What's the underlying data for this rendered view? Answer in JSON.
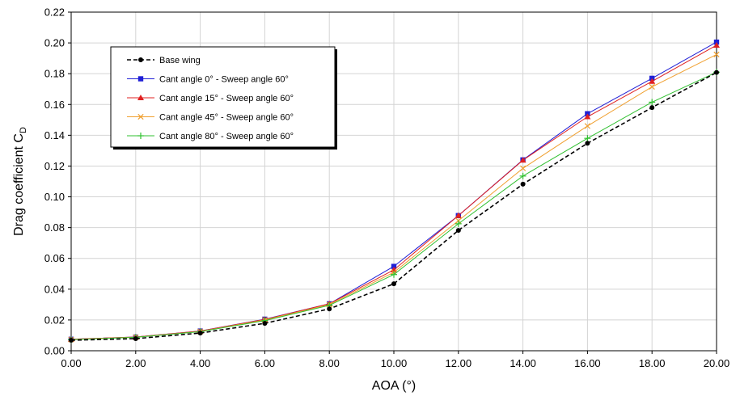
{
  "chart_data": {
    "type": "line",
    "title": "",
    "xlabel": "AOA (°)",
    "ylabel": "Drag coefficient C",
    "ylabel_subscript": "D",
    "xlim": [
      0,
      20
    ],
    "ylim": [
      0,
      0.22
    ],
    "x_ticks": [
      "0.00",
      "2.00",
      "4.00",
      "6.00",
      "8.00",
      "10.00",
      "12.00",
      "14.00",
      "16.00",
      "18.00",
      "20.00"
    ],
    "y_ticks": [
      "0.00",
      "0.02",
      "0.04",
      "0.06",
      "0.08",
      "0.10",
      "0.12",
      "0.14",
      "0.16",
      "0.18",
      "0.20",
      "0.22"
    ],
    "grid": true,
    "legend_position": "top-left",
    "x": [
      0,
      2,
      4,
      6,
      8,
      10,
      12,
      14,
      16,
      18,
      20
    ],
    "series": [
      {
        "name": "Base wing",
        "color": "#000000",
        "marker": "circle",
        "dashed": true,
        "values": [
          0.0068,
          0.0079,
          0.0115,
          0.0178,
          0.0272,
          0.0435,
          0.0782,
          0.1082,
          0.1348,
          0.158,
          0.1808
        ]
      },
      {
        "name": "Cant angle 0° - Sweep angle 60°",
        "color": "#1f1fd6",
        "marker": "square",
        "dashed": false,
        "values": [
          0.0075,
          0.0089,
          0.0128,
          0.0205,
          0.0305,
          0.0548,
          0.0878,
          0.124,
          0.154,
          0.177,
          0.2005
        ]
      },
      {
        "name": "Cant angle 15° - Sweep angle 60°",
        "color": "#e02020",
        "marker": "triangle",
        "dashed": false,
        "values": [
          0.0075,
          0.0089,
          0.0128,
          0.0203,
          0.0305,
          0.0525,
          0.0878,
          0.1238,
          0.152,
          0.175,
          0.1985
        ]
      },
      {
        "name": "Cant angle 45° - Sweep angle 60°",
        "color": "#f0a030",
        "marker": "x",
        "dashed": false,
        "values": [
          0.0073,
          0.0088,
          0.0125,
          0.02,
          0.03,
          0.051,
          0.0845,
          0.1185,
          0.146,
          0.1715,
          0.1925
        ]
      },
      {
        "name": "Cant angle 80° - Sweep angle 60°",
        "color": "#30c030",
        "marker": "plus",
        "dashed": false,
        "values": [
          0.0072,
          0.0087,
          0.0124,
          0.0196,
          0.0295,
          0.0495,
          0.0825,
          0.1135,
          0.138,
          0.1615,
          0.181
        ]
      }
    ]
  }
}
